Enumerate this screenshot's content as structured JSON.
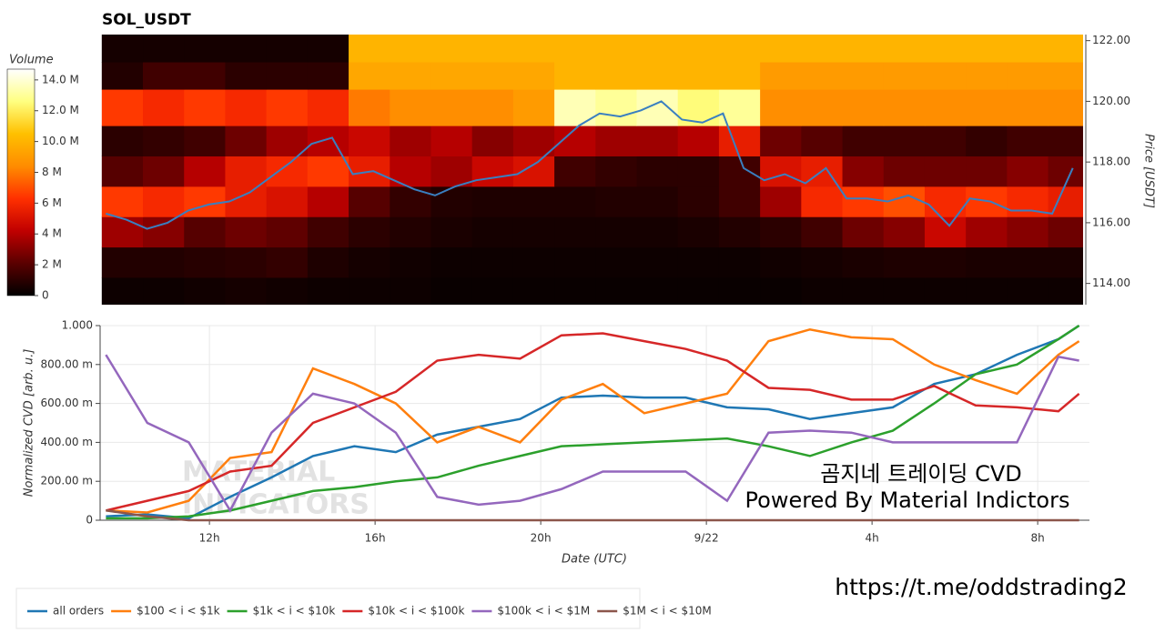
{
  "chart_data": [
    {
      "type": "heatmap",
      "title": "SOL_USDT",
      "colorbar_label": "Volume",
      "y2label": "Price [USDT]",
      "xlim": [
        9.36,
        33.25
      ],
      "x_bins": [
        9.4,
        10.4,
        11.4,
        12.4,
        13.4,
        14.4,
        15.4,
        16.4,
        17.4,
        18.4,
        19.4,
        20.4,
        21.4,
        22.4,
        23.4,
        24.4,
        25.4,
        26.4,
        27.4,
        28.4,
        29.4,
        30.4,
        31.4,
        32.4,
        33.3
      ],
      "y_bins": [
        113.3,
        114.2,
        115.2,
        116.2,
        117.2,
        118.2,
        119.2,
        120.4,
        121.3,
        122.2
      ],
      "z": [
        [
          0.3,
          0.3,
          0.4,
          0.5,
          0.4,
          0.3,
          0.3,
          0.3,
          0.2,
          0.2,
          0.2,
          0.2,
          0.2,
          0.2,
          0.2,
          0.2,
          0.2,
          0.3,
          0.3,
          0.3,
          0.3,
          0.3,
          0.3,
          0.3
        ],
        [
          0.8,
          0.8,
          0.9,
          1.0,
          1.2,
          0.7,
          0.5,
          0.4,
          0.3,
          0.3,
          0.3,
          0.3,
          0.3,
          0.3,
          0.3,
          0.3,
          0.4,
          0.5,
          0.6,
          0.7,
          0.7,
          0.6,
          0.6,
          0.6
        ],
        [
          3.5,
          3.0,
          2.0,
          2.5,
          2.2,
          1.5,
          1.0,
          0.8,
          0.6,
          0.5,
          0.5,
          0.5,
          0.5,
          0.5,
          0.6,
          0.8,
          1.0,
          1.5,
          2.5,
          3.0,
          4.5,
          3.5,
          3.0,
          2.5
        ],
        [
          6.5,
          6.0,
          6.5,
          5.5,
          5.0,
          4.0,
          2.0,
          1.2,
          0.8,
          0.7,
          0.7,
          0.7,
          0.8,
          0.8,
          1.0,
          1.5,
          3.5,
          6.0,
          6.5,
          7.0,
          6.0,
          6.5,
          6.0,
          5.5
        ],
        [
          2.0,
          2.5,
          4.0,
          5.5,
          6.0,
          6.5,
          5.5,
          4.0,
          3.5,
          4.5,
          5.0,
          1.5,
          1.2,
          1.0,
          1.0,
          1.5,
          5.0,
          5.5,
          3.0,
          2.5,
          2.5,
          2.5,
          3.0,
          2.5
        ],
        [
          1.0,
          1.2,
          1.5,
          2.5,
          3.5,
          4.0,
          4.5,
          3.5,
          4.0,
          3.0,
          3.5,
          4.0,
          3.5,
          3.5,
          4.0,
          5.5,
          2.5,
          2.0,
          1.5,
          1.5,
          1.5,
          1.2,
          1.5,
          1.5
        ],
        [
          6.5,
          6.0,
          6.5,
          6.0,
          6.5,
          6.0,
          8.0,
          8.5,
          8.5,
          8.5,
          9.0,
          13.5,
          13.0,
          13.5,
          12.5,
          13.0,
          8.5,
          8.5,
          8.5,
          8.5,
          8.5,
          8.5,
          8.5,
          8.5
        ],
        [
          0.8,
          1.5,
          1.5,
          1.0,
          1.0,
          1.0,
          9.5,
          9.5,
          9.5,
          9.5,
          9.5,
          10.0,
          10.0,
          10.0,
          10.0,
          10.0,
          9.0,
          9.0,
          9.0,
          9.0,
          9.0,
          9.0,
          9.0,
          9.0
        ],
        [
          0.5,
          0.5,
          0.5,
          0.5,
          0.5,
          0.5,
          10,
          10,
          10,
          10,
          10,
          10,
          10,
          10,
          10,
          10,
          10,
          10,
          10,
          10,
          10,
          10,
          10,
          10
        ]
      ],
      "zlim": [
        0,
        14.7
      ],
      "zticks": [
        0,
        {
          "value": 2,
          "label": "2 M"
        },
        {
          "value": 4,
          "label": "4 M"
        },
        {
          "value": 6,
          "label": "6 M"
        },
        {
          "value": 8,
          "label": "8 M"
        },
        {
          "value": 10,
          "label": "10.0 M"
        },
        {
          "value": 12,
          "label": "12.0 M"
        },
        {
          "value": 14,
          "label": "14.0 M"
        }
      ],
      "colorscale": [
        "#000000",
        "#5a0000",
        "#c00000",
        "#ff3000",
        "#ff8c00",
        "#ffc000",
        "#ffff80",
        "#ffffff"
      ],
      "y2lim": [
        113.3,
        122.2
      ],
      "y2ticks": [
        {
          "value": 114,
          "label": "114.00"
        },
        {
          "value": 116,
          "label": "116.00"
        },
        {
          "value": 118,
          "label": "118.00"
        },
        {
          "value": 120,
          "label": "120.00"
        },
        {
          "value": 122,
          "label": "122.00"
        }
      ],
      "price_line": {
        "color": "#3a7fc0",
        "x": [
          9.5,
          10,
          10.5,
          11,
          11.5,
          12,
          12.5,
          13,
          13.5,
          14,
          14.5,
          15,
          15.5,
          16,
          16.5,
          17,
          17.5,
          18,
          18.5,
          19,
          19.5,
          20,
          20.5,
          21,
          21.5,
          22,
          22.5,
          23,
          23.5,
          24,
          24.5,
          25,
          25.5,
          26,
          26.5,
          27,
          27.5,
          28,
          28.5,
          29,
          29.5,
          30,
          30.5,
          31,
          31.5,
          32,
          32.5,
          33
        ],
        "values": [
          116.3,
          116.1,
          115.8,
          116.0,
          116.4,
          116.6,
          116.7,
          117.0,
          117.5,
          118.0,
          118.6,
          118.8,
          117.6,
          117.7,
          117.4,
          117.1,
          116.9,
          117.2,
          117.4,
          117.5,
          117.6,
          118.0,
          118.6,
          119.2,
          119.6,
          119.5,
          119.7,
          120.0,
          119.4,
          119.3,
          119.6,
          117.8,
          117.4,
          117.6,
          117.3,
          117.8,
          116.8,
          116.8,
          116.7,
          116.9,
          116.6,
          115.9,
          116.8,
          116.7,
          116.4,
          116.4,
          116.3,
          117.8
        ]
      }
    },
    {
      "type": "line",
      "xlabel": "Date (UTC)",
      "ylabel": "Normalized CVD [arb. u.]",
      "grid": true,
      "legend": "bottom",
      "xlim": [
        9.36,
        33.25
      ],
      "xticks": [
        {
          "value": 12,
          "label": "12h"
        },
        {
          "value": 16,
          "label": "16h"
        },
        {
          "value": 20,
          "label": "20h"
        },
        {
          "value": 24,
          "label": "9/22"
        },
        {
          "value": 28,
          "label": "4h"
        },
        {
          "value": 32,
          "label": "8h"
        }
      ],
      "ylim": [
        0,
        1
      ],
      "yticks": [
        0,
        {
          "value": 0.2,
          "label": "200.00 m"
        },
        {
          "value": 0.4,
          "label": "400.00 m"
        },
        {
          "value": 0.6,
          "label": "600.00 m"
        },
        {
          "value": 0.8,
          "label": "800.00 m"
        },
        {
          "value": 1,
          "label": "1.000"
        }
      ],
      "x": [
        9.5,
        10.5,
        11.5,
        12.5,
        13.5,
        14.5,
        15.5,
        16.5,
        17.5,
        18.5,
        19.5,
        20.5,
        21.5,
        22.5,
        23.5,
        24.5,
        25.5,
        26.5,
        27.5,
        28.5,
        29.5,
        30.5,
        31.5,
        32.5,
        33
      ],
      "series": [
        {
          "name": "all orders",
          "color": "#1f77b4",
          "values": [
            0.02,
            0.03,
            0.01,
            0.12,
            0.22,
            0.33,
            0.38,
            0.35,
            0.44,
            0.48,
            0.52,
            0.63,
            0.64,
            0.63,
            0.63,
            0.58,
            0.57,
            0.52,
            0.55,
            0.58,
            0.7,
            0.75,
            0.85,
            0.93,
            1.0
          ]
        },
        {
          "name": "$100 < i < $1k",
          "color": "#ff7f0e",
          "values": [
            0.05,
            0.04,
            0.1,
            0.32,
            0.35,
            0.78,
            0.7,
            0.6,
            0.4,
            0.48,
            0.4,
            0.62,
            0.7,
            0.55,
            0.6,
            0.65,
            0.92,
            0.98,
            0.94,
            0.93,
            0.8,
            0.72,
            0.65,
            0.85,
            0.92
          ]
        },
        {
          "name": "$1k < i < $10k",
          "color": "#2ca02c",
          "values": [
            0.01,
            0.01,
            0.02,
            0.05,
            0.1,
            0.15,
            0.17,
            0.2,
            0.22,
            0.28,
            0.33,
            0.38,
            0.39,
            0.4,
            0.41,
            0.42,
            0.38,
            0.33,
            0.4,
            0.46,
            0.6,
            0.75,
            0.8,
            0.93,
            1.0
          ]
        },
        {
          "name": "$10k < i < $100k",
          "color": "#d62728",
          "values": [
            0.05,
            0.1,
            0.15,
            0.25,
            0.28,
            0.5,
            0.58,
            0.66,
            0.82,
            0.85,
            0.83,
            0.95,
            0.96,
            0.92,
            0.88,
            0.82,
            0.68,
            0.67,
            0.62,
            0.62,
            0.69,
            0.59,
            0.58,
            0.56,
            0.65
          ]
        },
        {
          "name": "$100k < i < $1M",
          "color": "#9467bd",
          "values": [
            0.85,
            0.5,
            0.4,
            0.05,
            0.45,
            0.65,
            0.6,
            0.45,
            0.12,
            0.08,
            0.1,
            0.16,
            0.25,
            0.25,
            0.25,
            0.1,
            0.45,
            0.46,
            0.45,
            0.4,
            0.4,
            0.4,
            0.4,
            0.84,
            0.82
          ]
        },
        {
          "name": "$1M < i < $10M",
          "color": "#8c564b",
          "values": [
            0.05,
            0.02,
            0,
            0,
            0,
            0,
            0,
            0,
            0,
            0,
            0,
            0,
            0,
            0,
            0,
            0,
            0,
            0,
            0,
            0,
            0,
            0,
            0,
            0,
            0
          ]
        }
      ],
      "annotations": [
        "곰지네 트레이딩 CVD",
        "Powered By Material Indictors"
      ],
      "watermark": [
        "MATERIAL",
        "INDICATORS"
      ]
    }
  ],
  "footer": {
    "link": "https://t.me/oddstrading2"
  }
}
